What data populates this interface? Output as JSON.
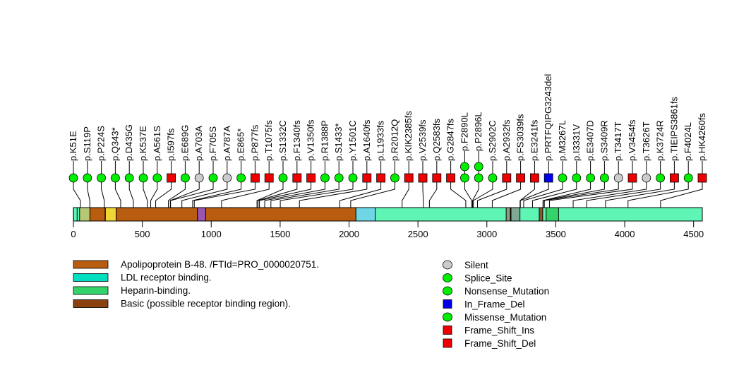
{
  "chart_data": {
    "type": "lollipop",
    "title": "",
    "xlabel": "",
    "ylabel": "",
    "protein_length": 4563,
    "xlim": [
      0,
      4563
    ],
    "x_ticks": [
      0,
      500,
      1000,
      1500,
      2000,
      2500,
      3000,
      3500,
      4000,
      4500
    ],
    "grid": false,
    "colors": {
      "missense": "#00ee00",
      "silent": "#cccccc",
      "frameshift": "#ee0000",
      "inframe": "#0000ee",
      "backbone": "#5ff5b5"
    },
    "domains": [
      {
        "name": "region-1",
        "start": 1,
        "end": 27,
        "color": "#5ff5b5"
      },
      {
        "name": "region-2",
        "start": 45,
        "end": 120,
        "color": "#b5c975"
      },
      {
        "name": "Apolipoprotein B-48 segment A",
        "start": 120,
        "end": 230,
        "color": "#b85c0f"
      },
      {
        "name": "region-yellow",
        "start": 232,
        "end": 310,
        "color": "#f0d635"
      },
      {
        "name": "Apolipoprotein B-48 segment B",
        "start": 310,
        "end": 900,
        "color": "#b85c0f"
      },
      {
        "name": "region-purple",
        "start": 900,
        "end": 960,
        "color": "#9955b0"
      },
      {
        "name": "Apolipoprotein B-48 segment C",
        "start": 960,
        "end": 2050,
        "color": "#b85c0f"
      },
      {
        "name": "LDL receptor binding",
        "start": 2050,
        "end": 2190,
        "color": "#6fd6e5"
      },
      {
        "name": "region-grey-a",
        "start": 3140,
        "end": 3170,
        "color": "#8aa07a"
      },
      {
        "name": "region-grey-b",
        "start": 3175,
        "end": 3240,
        "color": "#7fa895"
      },
      {
        "name": "region-small",
        "start": 3380,
        "end": 3405,
        "color": "#8a5a2a"
      },
      {
        "name": "Heparin-binding",
        "start": 3430,
        "end": 3520,
        "color": "#35d46b"
      }
    ],
    "mutations": [
      {
        "label": "p.K51E",
        "pos": 51,
        "type": "Missense_Mutation",
        "count": 1
      },
      {
        "label": "p.S119P",
        "pos": 119,
        "type": "Missense_Mutation",
        "count": 1
      },
      {
        "label": "p.P224S",
        "pos": 224,
        "type": "Missense_Mutation",
        "count": 1
      },
      {
        "label": "p.Q343*",
        "pos": 343,
        "type": "Nonsense_Mutation",
        "count": 1
      },
      {
        "label": "p.D435G",
        "pos": 435,
        "type": "Missense_Mutation",
        "count": 1
      },
      {
        "label": "p.K537E",
        "pos": 537,
        "type": "Missense_Mutation",
        "count": 1
      },
      {
        "label": "p.A561S",
        "pos": 561,
        "type": "Missense_Mutation",
        "count": 1
      },
      {
        "label": "p.I597fs",
        "pos": 597,
        "type": "Frame_Shift_Del",
        "count": 1
      },
      {
        "label": "p.E689G",
        "pos": 689,
        "type": "Missense_Mutation",
        "count": 1
      },
      {
        "label": "p.A703A",
        "pos": 703,
        "type": "Silent",
        "count": 1
      },
      {
        "label": "p.F705S",
        "pos": 705,
        "type": "Missense_Mutation",
        "count": 1
      },
      {
        "label": "p.A787A",
        "pos": 787,
        "type": "Silent",
        "count": 1
      },
      {
        "label": "p.E865*",
        "pos": 865,
        "type": "Nonsense_Mutation",
        "count": 1
      },
      {
        "label": "p.P877fs",
        "pos": 877,
        "type": "Frame_Shift_Del",
        "count": 1
      },
      {
        "label": "p.T1075fs",
        "pos": 1075,
        "type": "Frame_Shift_Del",
        "count": 1
      },
      {
        "label": "p.S1332C",
        "pos": 1332,
        "type": "Missense_Mutation",
        "count": 1
      },
      {
        "label": "p.F1340fs",
        "pos": 1340,
        "type": "Frame_Shift_Del",
        "count": 1
      },
      {
        "label": "p.V1350fs",
        "pos": 1350,
        "type": "Frame_Shift_Del",
        "count": 1
      },
      {
        "label": "p.R1388P",
        "pos": 1388,
        "type": "Missense_Mutation",
        "count": 1
      },
      {
        "label": "p.S1433*",
        "pos": 1433,
        "type": "Nonsense_Mutation",
        "count": 1
      },
      {
        "label": "p.Y1501C",
        "pos": 1501,
        "type": "Missense_Mutation",
        "count": 1
      },
      {
        "label": "p.A1640fs",
        "pos": 1640,
        "type": "Frame_Shift_Del",
        "count": 1
      },
      {
        "label": "p.L1933fs",
        "pos": 1933,
        "type": "Frame_Shift_Del",
        "count": 1
      },
      {
        "label": "p.R2012Q",
        "pos": 2012,
        "type": "Missense_Mutation",
        "count": 1
      },
      {
        "label": "p.KIK2385fs",
        "pos": 2385,
        "type": "Frame_Shift_Ins",
        "count": 1
      },
      {
        "label": "p.V2539fs",
        "pos": 2539,
        "type": "Frame_Shift_Del",
        "count": 1
      },
      {
        "label": "p.Q2583fs",
        "pos": 2583,
        "type": "Frame_Shift_Del",
        "count": 1
      },
      {
        "label": "p.G2847fs",
        "pos": 2847,
        "type": "Frame_Shift_Del",
        "count": 1
      },
      {
        "label": "p.F2890L",
        "pos": 2890,
        "type": "Missense_Mutation",
        "count": 2
      },
      {
        "label": "p.P2896L",
        "pos": 2896,
        "type": "Missense_Mutation",
        "count": 2
      },
      {
        "label": "p.S2902C",
        "pos": 2902,
        "type": "Missense_Mutation",
        "count": 1
      },
      {
        "label": "p.A2932fs",
        "pos": 2932,
        "type": "Frame_Shift_Del",
        "count": 1
      },
      {
        "label": "p.FS3039fs",
        "pos": 3039,
        "type": "Frame_Shift_Del",
        "count": 1
      },
      {
        "label": "p.E3241fs",
        "pos": 3241,
        "type": "Frame_Shift_Del",
        "count": 1
      },
      {
        "label": "p.PRTFQIPG3243del",
        "pos": 3243,
        "type": "In_Frame_Del",
        "count": 1
      },
      {
        "label": "p.M3267L",
        "pos": 3267,
        "type": "Missense_Mutation",
        "count": 1
      },
      {
        "label": "p.I3331V",
        "pos": 3331,
        "type": "Missense_Mutation",
        "count": 1
      },
      {
        "label": "p.E3407D",
        "pos": 3407,
        "type": "Missense_Mutation",
        "count": 1
      },
      {
        "label": "p.S3409R",
        "pos": 3409,
        "type": "Missense_Mutation",
        "count": 1
      },
      {
        "label": "p.T3417T",
        "pos": 3417,
        "type": "Silent",
        "count": 1
      },
      {
        "label": "p.V3454fs",
        "pos": 3454,
        "type": "Frame_Shift_Del",
        "count": 1
      },
      {
        "label": "p.T3626T",
        "pos": 3626,
        "type": "Silent",
        "count": 1
      },
      {
        "label": "p.K3724R",
        "pos": 3724,
        "type": "Missense_Mutation",
        "count": 1
      },
      {
        "label": "p.TIEIPS3861fs",
        "pos": 3861,
        "type": "Frame_Shift_Del",
        "count": 1
      },
      {
        "label": "p.F4024L",
        "pos": 4024,
        "type": "Missense_Mutation",
        "count": 1
      },
      {
        "label": "p.HK4260fs",
        "pos": 4260,
        "type": "Frame_Shift_Del",
        "count": 1
      }
    ],
    "legend_domains": [
      {
        "label": "Apolipoprotein B-48. /FTId=PRO_0000020751.",
        "color": "#b85c0f"
      },
      {
        "label": "LDL receptor binding.",
        "color": "#00e0c0"
      },
      {
        "label": "Heparin-binding.",
        "color": "#35d46b"
      },
      {
        "label": "Basic (possible receptor binding region).",
        "color": "#8b4010"
      }
    ],
    "legend_mutations": [
      {
        "label": "Silent",
        "shape": "circle",
        "color": "#cccccc"
      },
      {
        "label": "Splice_Site",
        "shape": "circle",
        "color": "#00ee00"
      },
      {
        "label": "Nonsense_Mutation",
        "shape": "circle",
        "color": "#00ee00"
      },
      {
        "label": "In_Frame_Del",
        "shape": "square",
        "color": "#0000ee"
      },
      {
        "label": "Missense_Mutation",
        "shape": "circle",
        "color": "#00ee00"
      },
      {
        "label": "Frame_Shift_Ins",
        "shape": "square",
        "color": "#ee0000"
      },
      {
        "label": "Frame_Shift_Del",
        "shape": "square",
        "color": "#ee0000"
      }
    ],
    "legend_placement": "bottom"
  }
}
